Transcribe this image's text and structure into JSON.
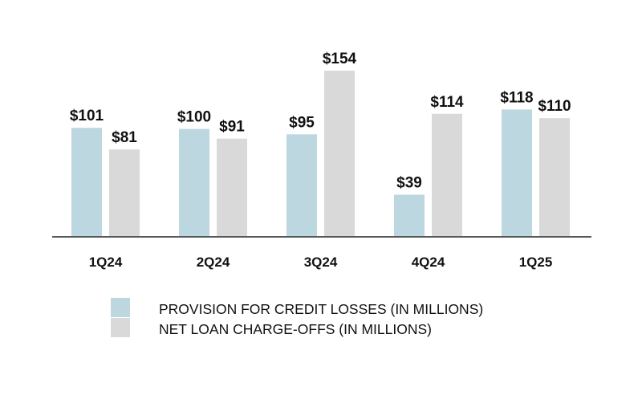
{
  "chart_data": {
    "type": "bar",
    "title": "",
    "xlabel": "",
    "ylabel": "",
    "ylim": [
      0,
      160
    ],
    "grid": false,
    "legend_position": "bottom",
    "categories": [
      "1Q24",
      "2Q24",
      "3Q24",
      "4Q24",
      "1Q25"
    ],
    "series": [
      {
        "name": "PROVISION FOR CREDIT LOSSES (IN MILLIONS)",
        "color": "#bdd7e1",
        "values": [
          101,
          100,
          95,
          39,
          118
        ],
        "labels": [
          "$101",
          "$100",
          "$95",
          "$39",
          "$118"
        ]
      },
      {
        "name": "NET LOAN CHARGE-OFFS (IN MILLIONS)",
        "color": "#d9d9d9",
        "values": [
          81,
          91,
          154,
          114,
          110
        ],
        "labels": [
          "$81",
          "$91",
          "$154",
          "$114",
          "$110"
        ]
      }
    ],
    "axis_color": "#595959"
  }
}
